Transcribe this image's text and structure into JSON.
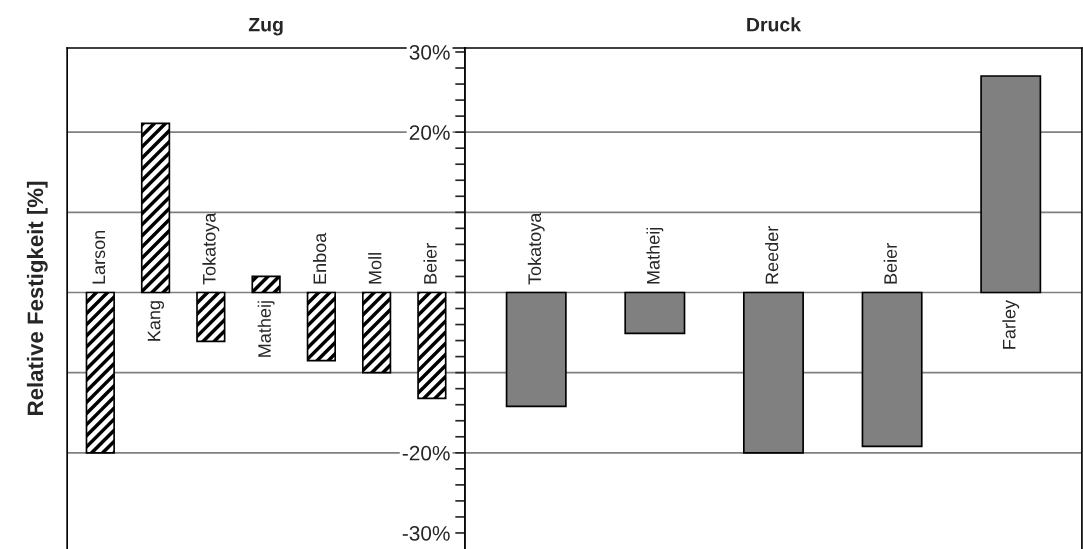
{
  "chart_data": [
    {
      "type": "bar",
      "title": "Zug",
      "ylabel": "Relative Festigkeit [%]",
      "categories": [
        "Larson",
        "Kang",
        "Tokatoya",
        "Matheij",
        "Enboa",
        "Moll",
        "Beier"
      ],
      "series": [
        {
          "color": "#000000",
          "values": [
            -20,
            21.1,
            -6.1,
            2.0,
            -8.5,
            -10,
            -13.2
          ]
        }
      ],
      "ylim": [
        -32,
        30.5
      ],
      "tick_labels": "x",
      "grid": false,
      "ref_lines": [
        {
          "axis": "y",
          "value": 20,
          "color": "#808080"
        },
        {
          "axis": "y",
          "value": 10,
          "color": "#808080"
        },
        {
          "axis": "y",
          "value": 0,
          "color": "#808080"
        },
        {
          "axis": "y",
          "value": -10,
          "color": "#808080"
        },
        {
          "axis": "y",
          "value": -20,
          "color": "#808080"
        }
      ]
    },
    {
      "type": "bar",
      "title": "Druck",
      "categories": [
        "Tokatoya",
        "Matheij",
        "Reeder",
        "Beier",
        "Farley"
      ],
      "series": [
        {
          "color": "#808080",
          "values": [
            -14.2,
            -5.1,
            -20,
            -19.2,
            27.0
          ]
        }
      ],
      "ylim": [
        -32,
        30.5
      ],
      "grid": false,
      "yticks": [
        {
          "value": -30,
          "label": "-30%"
        },
        {
          "value": -28,
          "label": null
        },
        {
          "value": -26,
          "label": null
        },
        {
          "value": -24,
          "label": null
        },
        {
          "value": -22,
          "label": null
        },
        {
          "value": -20,
          "label": "-20%"
        },
        {
          "value": -18,
          "label": null
        },
        {
          "value": -16,
          "label": null
        },
        {
          "value": -14,
          "label": null
        },
        {
          "value": -12,
          "label": null
        },
        {
          "value": -10,
          "label": null
        },
        {
          "value": -8,
          "label": null
        },
        {
          "value": -6,
          "label": null
        },
        {
          "value": -4,
          "label": null
        },
        {
          "value": -2,
          "label": null
        },
        {
          "value": 0,
          "label": null
        },
        {
          "value": 2,
          "label": null
        },
        {
          "value": 4,
          "label": null
        },
        {
          "value": 6,
          "label": null
        },
        {
          "value": 8,
          "label": null
        },
        {
          "value": 10,
          "label": null
        },
        {
          "value": 12,
          "label": null
        },
        {
          "value": 14,
          "label": null
        },
        {
          "value": 16,
          "label": null
        },
        {
          "value": 18,
          "label": null
        },
        {
          "value": 20,
          "label": "20%"
        },
        {
          "value": 22,
          "label": null
        },
        {
          "value": 24,
          "label": null
        },
        {
          "value": 26,
          "label": null
        },
        {
          "value": 28,
          "label": null
        },
        {
          "value": 30,
          "label": "30%"
        }
      ],
      "ref_lines": [
        {
          "axis": "y",
          "value": 20,
          "color": "#808080"
        },
        {
          "axis": "y",
          "value": 10,
          "color": "#808080"
        },
        {
          "axis": "y",
          "value": 0,
          "color": "#808080"
        },
        {
          "axis": "y",
          "value": -10,
          "color": "#808080"
        },
        {
          "axis": "y",
          "value": -20,
          "color": "#808080"
        }
      ]
    }
  ]
}
